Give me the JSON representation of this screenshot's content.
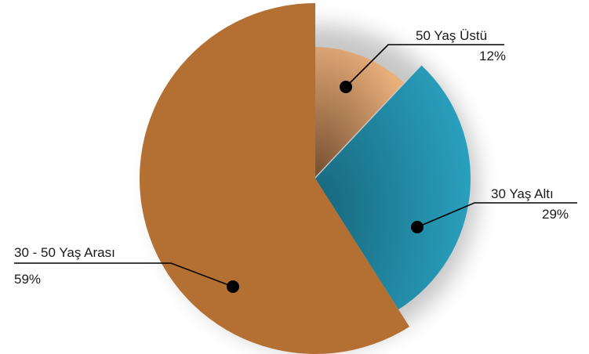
{
  "chart_data": {
    "type": "pie",
    "title": "",
    "slices": [
      {
        "label": "50 Yaş Üstü",
        "value": 12,
        "value_label": "12%",
        "color": "#c9875a",
        "color_light": "#eab07c",
        "color_dark": "#7a5233"
      },
      {
        "label": "30 Yaş Altı",
        "value": 29,
        "value_label": "29%",
        "color": "#2396b4",
        "color_light": "#2ba5c4",
        "color_dark": "#17667c"
      },
      {
        "label": "30 - 50 Yaş Arası",
        "value": 59,
        "value_label": "59%",
        "color": "#b46f33",
        "color_light": "#b46f33",
        "color_dark": "#b46f33"
      }
    ],
    "legend": "none",
    "labels_placement": "outside with leader lines"
  }
}
